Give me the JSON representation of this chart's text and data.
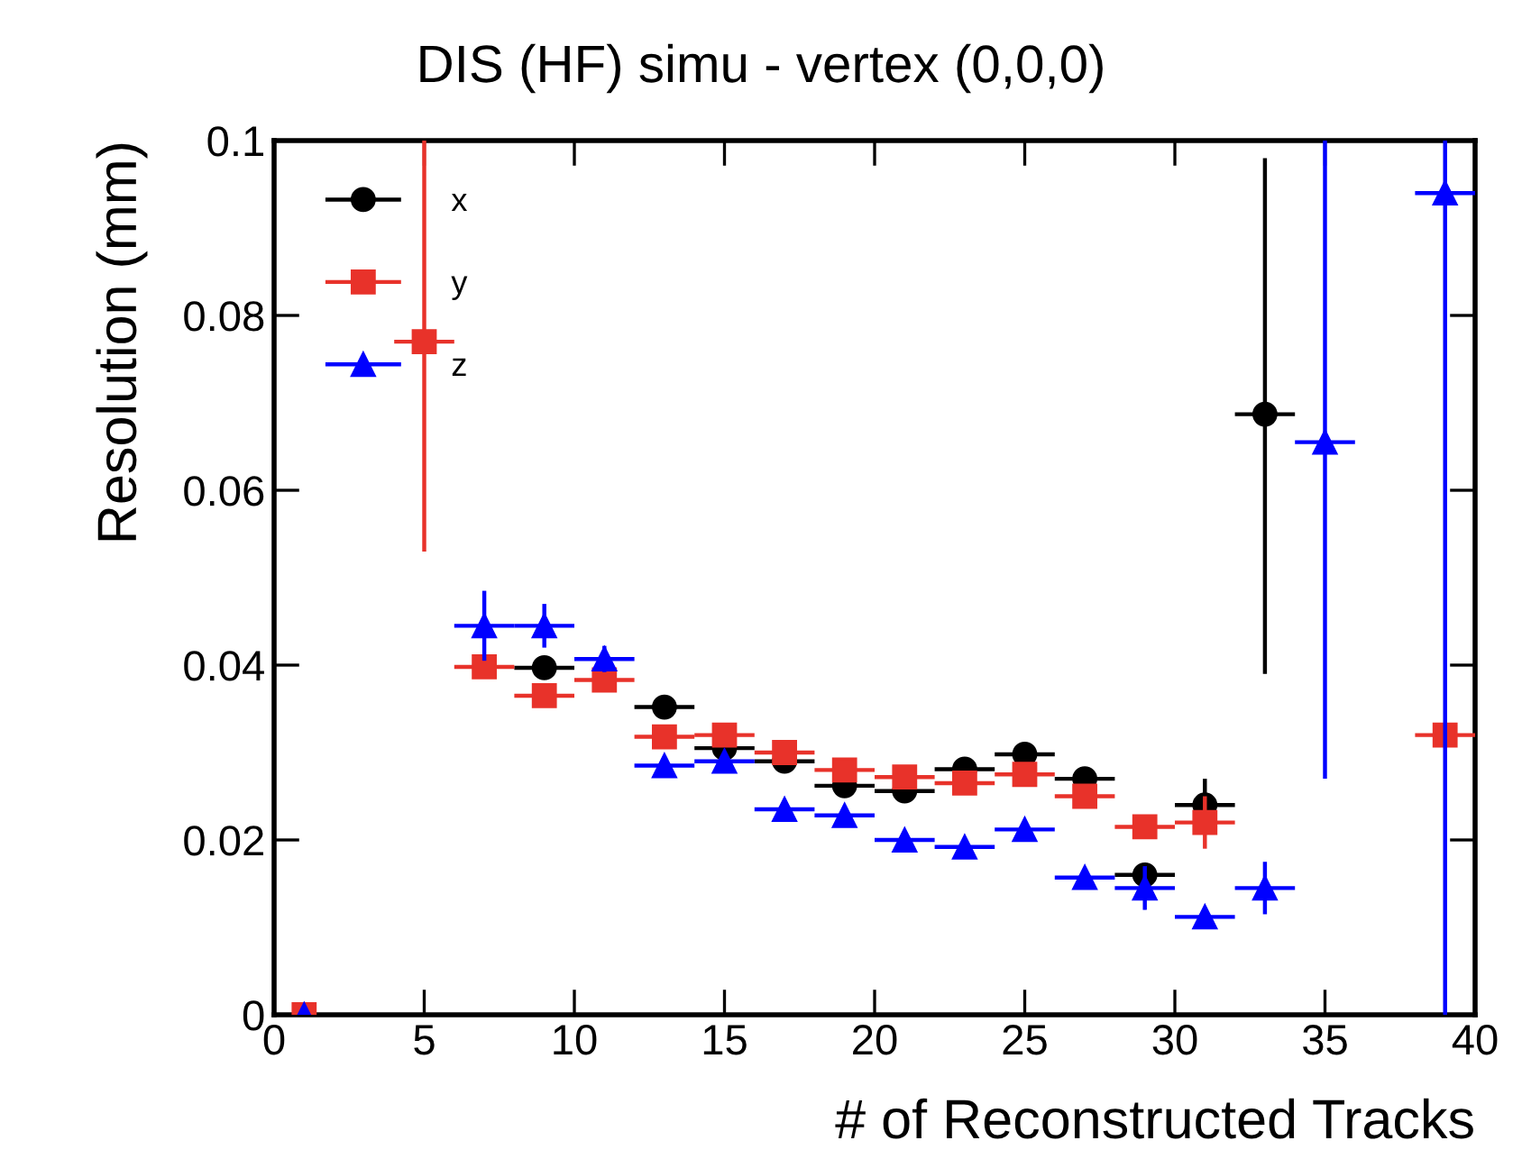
{
  "chart_data": {
    "type": "scatter",
    "title": "DIS (HF) simu - vertex (0,0,0)",
    "xlabel": "# of Reconstructed Tracks",
    "ylabel": "Resolution (mm)",
    "xlim": [
      0,
      40
    ],
    "ylim": [
      0,
      0.1
    ],
    "xticks": [
      0,
      5,
      10,
      15,
      20,
      25,
      30,
      35,
      40
    ],
    "yticks": [
      0,
      0.02,
      0.04,
      0.06,
      0.08,
      0.1
    ],
    "grid": false,
    "legend": "top left",
    "series": [
      {
        "name": "x",
        "color": "#000000",
        "marker": "circle",
        "x": [
          9,
          13,
          15,
          17,
          19,
          21,
          23,
          25,
          27,
          29,
          31,
          33
        ],
        "values": [
          0.0397,
          0.0352,
          0.0305,
          0.029,
          0.0262,
          0.0256,
          0.0281,
          0.0298,
          0.027,
          0.016,
          0.024,
          0.0687
        ],
        "xerrors": [
          1,
          1,
          1,
          1,
          1,
          1,
          1,
          1,
          1,
          1,
          1,
          1
        ],
        "errors": [
          null,
          null,
          null,
          null,
          null,
          null,
          null,
          null,
          null,
          null,
          0.003,
          [
            0.039,
            0.098
          ]
        ]
      },
      {
        "name": "y",
        "color": "#e8322a",
        "marker": "square",
        "x": [
          1,
          5,
          7,
          9,
          11,
          13,
          15,
          17,
          19,
          21,
          23,
          25,
          27,
          29,
          31,
          39
        ],
        "values": [
          0,
          0.077,
          0.0398,
          0.0365,
          0.0383,
          0.0318,
          0.032,
          0.03,
          0.028,
          0.0272,
          0.0265,
          0.0275,
          0.025,
          0.0215,
          0.022,
          0.032
        ],
        "xerrors": [
          null,
          1,
          1,
          1,
          1,
          1,
          1,
          1,
          1,
          1,
          1,
          1,
          1,
          1,
          1,
          1
        ],
        "errors": [
          null,
          [
            0.053,
            0.1
          ],
          null,
          null,
          null,
          null,
          null,
          null,
          null,
          null,
          null,
          null,
          null,
          null,
          0.003,
          null
        ]
      },
      {
        "name": "z",
        "color": "#0000ff",
        "marker": "triangle",
        "x": [
          1,
          7,
          9,
          11,
          13,
          15,
          17,
          19,
          21,
          23,
          25,
          27,
          29,
          31,
          33,
          35,
          39
        ],
        "values": [
          0,
          0.0445,
          0.0445,
          0.0407,
          0.0285,
          0.029,
          0.0235,
          0.0228,
          0.02,
          0.0192,
          0.0212,
          0.0157,
          0.0145,
          0.0112,
          0.0145,
          0.0655,
          0.094
        ],
        "xerrors": [
          null,
          1,
          1,
          1,
          1,
          1,
          1,
          1,
          1,
          1,
          1,
          1,
          1,
          1,
          1,
          1,
          1
        ],
        "errors": [
          null,
          0.004,
          0.0025,
          0.0015,
          null,
          null,
          null,
          null,
          null,
          null,
          null,
          null,
          0.0025,
          null,
          0.003,
          [
            0.027,
            0.1
          ],
          [
            0,
            0.1
          ]
        ]
      }
    ]
  }
}
